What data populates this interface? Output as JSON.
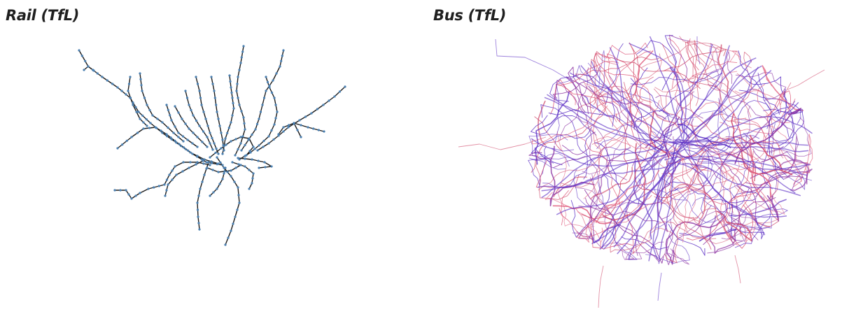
{
  "panels": [
    {
      "id": "rail",
      "title": "Rail (TfL)",
      "edge_color": "#1c1c1c",
      "node_color": "#4a7fb0"
    },
    {
      "id": "bus",
      "title": "Bus (TfL)",
      "edge_colors": [
        "#d0496a",
        "#5b2fc4",
        "#8a2fa0",
        "#e06080"
      ]
    }
  ]
}
